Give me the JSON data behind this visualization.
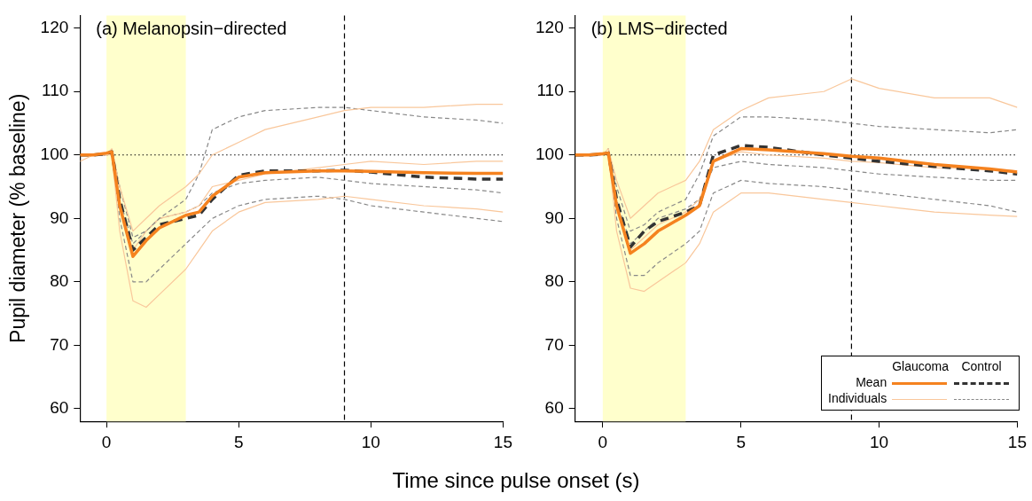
{
  "chart_data": [
    {
      "type": "line",
      "title": "(a) Melanopsin−directed",
      "xlabel": "Time since pulse onset (s)",
      "ylabel": "Pupil diameter (% baseline)",
      "x": [
        -1,
        -0.5,
        0,
        0.2,
        0.5,
        1,
        1.5,
        2,
        3,
        3.5,
        4,
        5,
        6,
        8,
        9,
        10,
        12,
        14,
        15
      ],
      "xlim": [
        -1,
        15
      ],
      "xticks": [
        0,
        5,
        10,
        15
      ],
      "ylim": [
        58,
        122
      ],
      "yticks": [
        60,
        70,
        80,
        90,
        100,
        110,
        120
      ],
      "grid": false,
      "legend": false,
      "marker": "none",
      "bands": [
        {
          "axis": "x",
          "from": 0,
          "to": 3,
          "color": "#ffffcc"
        }
      ],
      "ref_lines": [
        {
          "axis": "x",
          "value": 9,
          "color": "#000000",
          "line_style": "dashed"
        },
        {
          "axis": "y",
          "value": 100,
          "color": "#000000",
          "line_style": "dotted"
        }
      ],
      "series": [
        {
          "color": "#f5821f",
          "line_style": "solid",
          "values": [
            100,
            100,
            100.3,
            100.5,
            92,
            84,
            86.5,
            88.5,
            90.5,
            91,
            93.5,
            96.5,
            97.2,
            97.5,
            97.5,
            97.4,
            97.2,
            97.1,
            97.1
          ]
        },
        {
          "color": "#333333",
          "line_style": "dashed",
          "values": [
            100,
            100,
            100.2,
            100.5,
            93,
            85,
            87,
            89,
            90,
            90.5,
            93,
            96.8,
            97.5,
            97.5,
            97.6,
            97.3,
            96.5,
            96.2,
            96.2
          ]
        },
        {
          "color": "#f9c79b",
          "line_style": "solid",
          "values": [
            100,
            100,
            100,
            101,
            95,
            88,
            90,
            92,
            95,
            97,
            100,
            102,
            104,
            106,
            107,
            107.5,
            107.5,
            108,
            108
          ]
        },
        {
          "color": "#888888",
          "line_style": "dashed",
          "values": [
            100,
            100,
            100,
            101,
            95,
            87,
            88,
            90,
            93,
            97,
            104,
            106,
            107,
            107.5,
            107.5,
            107,
            106,
            105.5,
            105
          ]
        },
        {
          "color": "#f9c79b",
          "line_style": "solid",
          "values": [
            100,
            100,
            100,
            100.5,
            92,
            85,
            88,
            90,
            91,
            92,
            95,
            96,
            97,
            98,
            98.5,
            99,
            98.5,
            99,
            99
          ]
        },
        {
          "color": "#888888",
          "line_style": "dashed",
          "values": [
            100,
            100,
            100,
            100.5,
            93,
            86,
            88,
            90,
            91,
            92,
            94,
            95.5,
            96,
            96.5,
            96,
            95.5,
            95,
            94.5,
            94
          ]
        },
        {
          "color": "#f9c79b",
          "line_style": "solid",
          "values": [
            99,
            100,
            100,
            100,
            88,
            77,
            76,
            78,
            82,
            85,
            88,
            91,
            92.5,
            93,
            93.5,
            93,
            92,
            91.5,
            91
          ]
        },
        {
          "color": "#888888",
          "line_style": "dashed",
          "values": [
            100,
            100,
            100,
            100.5,
            90,
            80,
            80,
            82,
            86,
            88,
            90,
            92,
            93,
            93.5,
            93,
            92,
            91,
            90,
            89.5
          ]
        }
      ]
    },
    {
      "type": "line",
      "title": "(b) LMS−directed",
      "x": [
        -1,
        -0.5,
        0,
        0.2,
        0.5,
        1,
        1.5,
        2,
        3,
        3.5,
        4,
        5,
        6,
        8,
        9,
        10,
        12,
        14,
        15
      ],
      "xlim": [
        -1,
        15
      ],
      "xticks": [
        0,
        5,
        10,
        15
      ],
      "ylim": [
        58,
        122
      ],
      "yticks": [
        60,
        70,
        80,
        90,
        100,
        110,
        120
      ],
      "grid": false,
      "legend": "bottom right",
      "marker": "none",
      "annotations": [
        "Glaucoma",
        "Control"
      ],
      "bands": [
        {
          "axis": "x",
          "from": 0,
          "to": 3,
          "color": "#ffffcc"
        }
      ],
      "ref_lines": [
        {
          "axis": "x",
          "value": 9,
          "color": "#000000",
          "line_style": "dashed"
        },
        {
          "axis": "y",
          "value": 100,
          "color": "#000000",
          "line_style": "dotted"
        }
      ],
      "series": [
        {
          "name": "Mean",
          "color": "#f5821f",
          "line_style": "solid",
          "values": [
            100,
            100,
            100.2,
            100.3,
            92,
            84.5,
            86,
            88,
            90.5,
            92,
            99,
            101,
            100.8,
            100.2,
            99.8,
            99.5,
            98.5,
            97.8,
            97.3
          ]
        },
        {
          "color": "#333333",
          "line_style": "dashed",
          "values": [
            100,
            100,
            100.1,
            100.3,
            93,
            85.5,
            88,
            89.5,
            91,
            92,
            100,
            101.5,
            101.2,
            100,
            99.5,
            99,
            98.2,
            97.5,
            97
          ]
        },
        {
          "name": "Individuals",
          "color": "#f9c79b",
          "line_style": "solid",
          "values": [
            100,
            100,
            100,
            101,
            96,
            90,
            92,
            94,
            96,
            99,
            104,
            107,
            109,
            110,
            112,
            110.5,
            109,
            109,
            107.5
          ]
        },
        {
          "color": "#888888",
          "line_style": "dashed",
          "values": [
            100,
            100,
            100,
            101,
            95,
            88,
            89,
            91,
            93,
            97,
            103,
            106,
            106,
            105.5,
            105,
            104.5,
            104,
            103.5,
            104
          ]
        },
        {
          "color": "#f9c79b",
          "line_style": "solid",
          "values": [
            100,
            100,
            100,
            100.5,
            92,
            85,
            87,
            89,
            91,
            93,
            99,
            100.5,
            100,
            99.5,
            99,
            98.8,
            98,
            97.8,
            97.5
          ]
        },
        {
          "color": "#888888",
          "line_style": "dashed",
          "values": [
            100,
            100,
            100,
            100.5,
            93,
            86,
            88,
            90,
            91.5,
            93,
            98,
            99,
            98.5,
            98,
            97.5,
            97,
            96.5,
            96,
            96
          ]
        },
        {
          "color": "#f9c79b",
          "line_style": "solid",
          "values": [
            100,
            100,
            100,
            100.5,
            88,
            79,
            78.5,
            80,
            83,
            86,
            91,
            94,
            94,
            93,
            92.5,
            92,
            91,
            90.5,
            90.3
          ]
        },
        {
          "color": "#888888",
          "line_style": "dashed",
          "values": [
            100,
            100,
            100,
            100.5,
            90,
            81,
            81,
            83,
            86,
            88,
            94,
            96,
            95.5,
            95,
            94.5,
            94,
            93,
            92,
            91
          ]
        }
      ]
    }
  ]
}
